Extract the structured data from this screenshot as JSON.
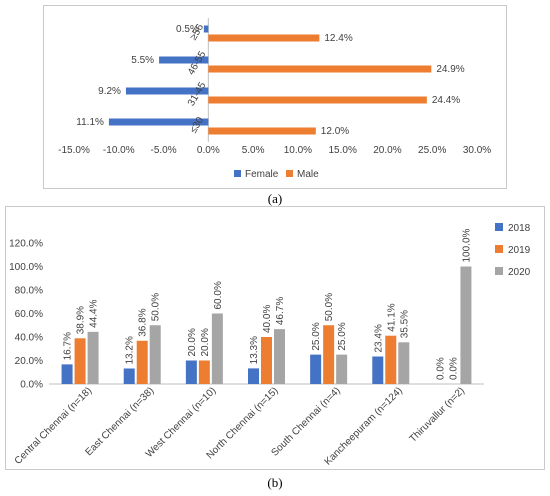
{
  "captions": {
    "a": "(a)",
    "b": "(b)"
  },
  "colors": {
    "female": "#4472c4",
    "male": "#ed7d31",
    "y2018": "#4472c4",
    "y2019": "#ed7d31",
    "y2020": "#a5a5a5"
  },
  "chart_data": [
    {
      "type": "bar",
      "orientation": "horizontal",
      "categories": [
        "≥56",
        "46-55",
        "31-45",
        "≤30"
      ],
      "series": [
        {
          "name": "Female",
          "values": [
            -0.5,
            -5.5,
            -9.2,
            -11.1
          ],
          "labels": [
            "0.5%",
            "5.5%",
            "9.2%",
            "11.1%"
          ]
        },
        {
          "name": "Male",
          "values": [
            12.4,
            24.9,
            24.4,
            12.0
          ],
          "labels": [
            "12.4%",
            "24.9%",
            "24.4%",
            "12.0%"
          ]
        }
      ],
      "xlim": [
        -15,
        30
      ],
      "xticks": [
        "-15.0%",
        "-10.0%",
        "-5.0%",
        "0.0%",
        "5.0%",
        "10.0%",
        "15.0%",
        "20.0%",
        "25.0%",
        "30.0%"
      ],
      "legend": "bottom",
      "grid": false
    },
    {
      "type": "bar",
      "categories": [
        "Central Chennai (n=18)",
        "East Chennai (n=38)",
        "West Chennai (n=10)",
        "North Chennai (n=15)",
        "South Chennai (n=4)",
        "Kancheepuram (n=124)",
        "Thiruvallur (n=2)"
      ],
      "series": [
        {
          "name": "2018",
          "values": [
            16.7,
            13.2,
            20.0,
            13.3,
            25.0,
            23.4,
            0.0
          ],
          "labels": [
            "16.7%",
            "13.2%",
            "20.0%",
            "13.3%",
            "25.0%",
            "23.4%",
            "0.0%"
          ]
        },
        {
          "name": "2019",
          "values": [
            38.9,
            36.8,
            20.0,
            40.0,
            50.0,
            41.1,
            0.0
          ],
          "labels": [
            "38.9%",
            "36.8%",
            "20.0%",
            "40.0%",
            "50.0%",
            "41.1%",
            "0.0%"
          ]
        },
        {
          "name": "2020",
          "values": [
            44.4,
            50.0,
            60.0,
            46.7,
            25.0,
            35.5,
            100.0
          ],
          "labels": [
            "44.4%",
            "50.0%",
            "60.0%",
            "46.7%",
            "25.0%",
            "35.5%",
            "100.0%"
          ]
        }
      ],
      "ylim": [
        0,
        120
      ],
      "yticks": [
        "0.0%",
        "20.0%",
        "40.0%",
        "60.0%",
        "80.0%",
        "100.0%",
        "120.0%"
      ],
      "legend": "right",
      "grid": false
    }
  ]
}
